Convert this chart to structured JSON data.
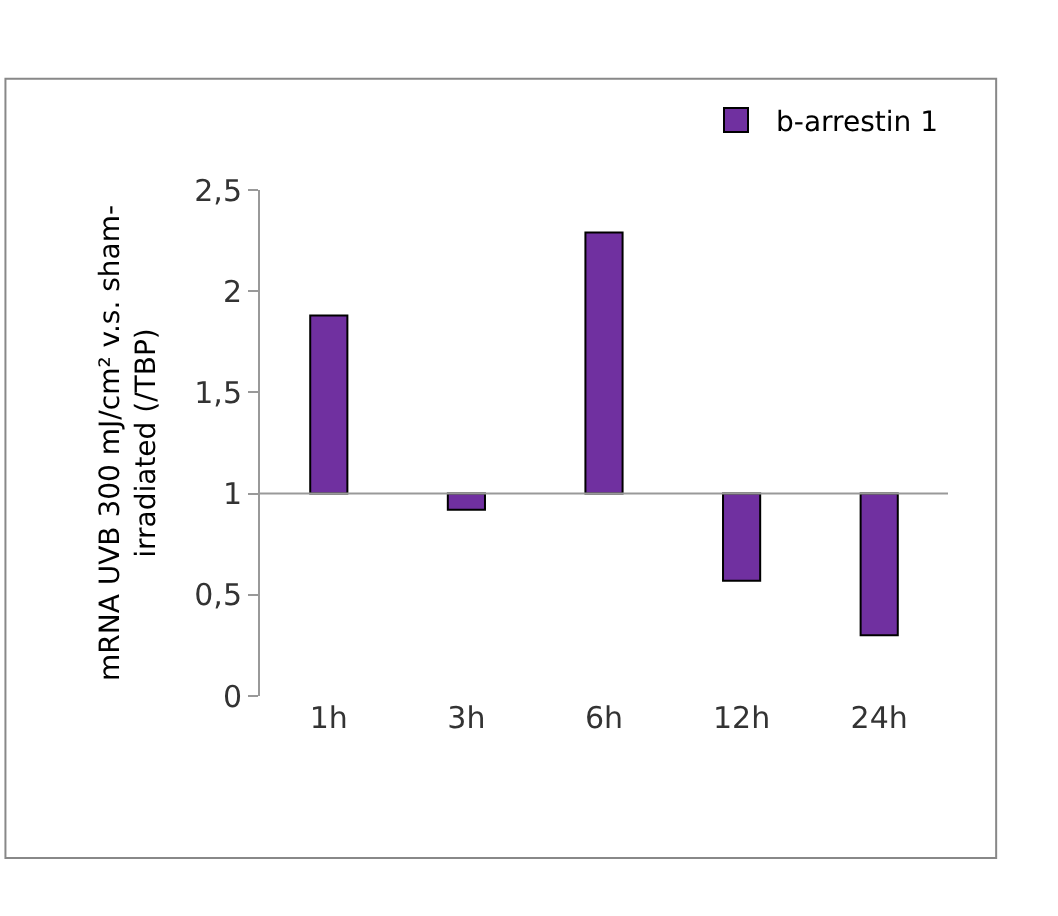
{
  "chart_data": {
    "type": "bar",
    "categories": [
      "1h",
      "3h",
      "6h",
      "12h",
      "24h"
    ],
    "ref_lines": [
      {
        "axis": "y",
        "value": 1,
        "color": "#999999"
      }
    ],
    "series": [
      {
        "name": "b-arrestin 1",
        "color": "#7030a0",
        "base": [
          1,
          1,
          1,
          1,
          1
        ],
        "values": [
          0.88,
          -0.08,
          1.29,
          -0.43,
          -0.7
        ]
      }
    ],
    "ylabel": "mRNA UVB 300 mJ/cm² v.s. sham-\nirradiated (/TBP)",
    "ylim": [
      0,
      2.5
    ],
    "yticks": [
      0,
      {
        "value": 0.5,
        "label": "0,5"
      },
      1,
      {
        "value": 1.5,
        "label": "1,5"
      },
      2,
      {
        "value": 2.5,
        "label": "2,5"
      }
    ],
    "grid": false,
    "legend": "top right"
  }
}
